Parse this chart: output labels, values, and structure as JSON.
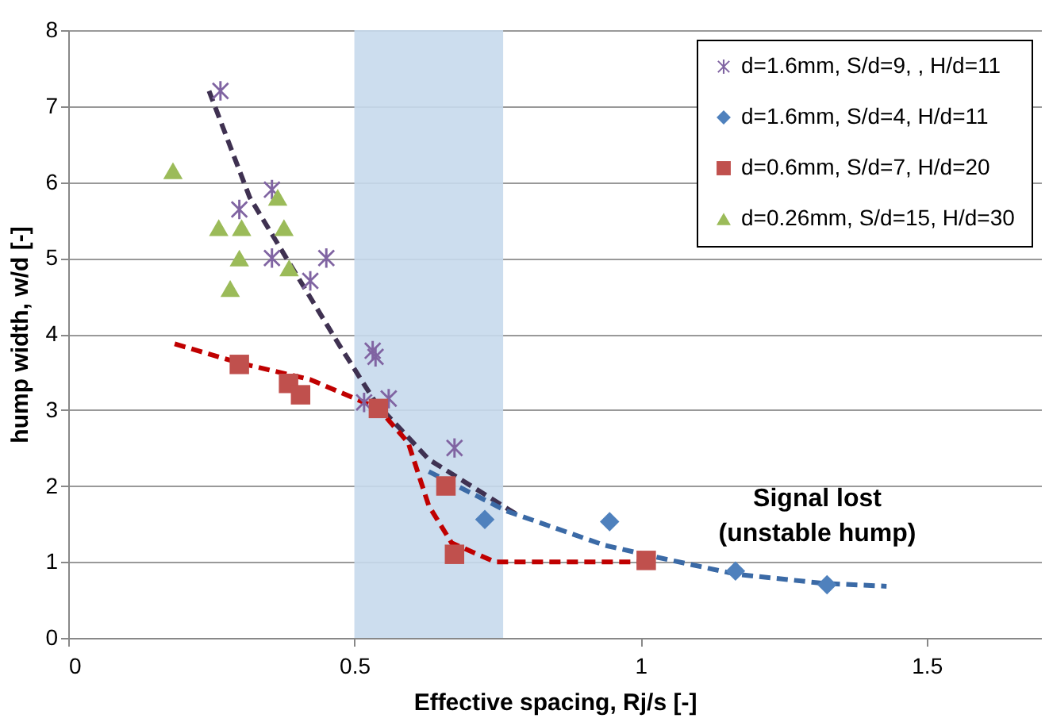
{
  "chart_data": {
    "type": "scatter",
    "xlabel": "Effective spacing, Rj/s [-]",
    "ylabel": "hump width, w/d [-]",
    "xlim": [
      0,
      1.7
    ],
    "xticks": [
      {
        "value": 0,
        "label": "0"
      },
      0.5,
      {
        "value": 1,
        "label": "1"
      },
      1.5
    ],
    "ylim": [
      0,
      8
    ],
    "yticks": [
      0,
      1,
      2,
      3,
      4,
      5,
      6,
      7,
      8
    ],
    "grid": "y",
    "legend": "top right",
    "bands": [
      {
        "axis": "x",
        "from": 0.5,
        "to": 0.76,
        "color": "#c6d9ec"
      }
    ],
    "annotations": [
      "Signal lost\n(unstable hump)"
    ],
    "series": [
      {
        "type": "line",
        "color": "#3f3151",
        "line_style": "dashed",
        "x": [
          0.246,
          0.317,
          0.394,
          0.474,
          0.537,
          0.63,
          0.789
        ],
        "values": [
          7.2,
          5.8,
          4.84,
          3.85,
          3.1,
          2.35,
          1.6
        ]
      },
      {
        "type": "line",
        "color": "#3b6aa6",
        "line_style": "dashed",
        "x": [
          0.63,
          0.766,
          0.937,
          1.03,
          1.166,
          1.317,
          1.43
        ],
        "values": [
          2.19,
          1.67,
          1.22,
          1.06,
          0.84,
          0.72,
          0.68
        ]
      },
      {
        "type": "line",
        "color": "#c00000",
        "line_style": "dashed",
        "x": [
          0.186,
          0.299,
          0.423,
          0.542,
          0.594,
          0.63,
          0.67,
          0.746,
          0.766,
          1.01
        ],
        "values": [
          3.87,
          3.62,
          3.4,
          3.02,
          2.57,
          1.74,
          1.25,
          1.0,
          1.0,
          1.0
        ]
      },
      {
        "name": "d=1.6mm, S/d=9, , H/d=11",
        "color": "#8064a2",
        "marker": "cross",
        "x": [
          0.266,
          0.299,
          0.356,
          0.356,
          0.423,
          0.451,
          0.532,
          0.537,
          0.517,
          0.56,
          0.675
        ],
        "values": [
          7.2,
          5.64,
          5.9,
          5.0,
          4.7,
          5.0,
          3.78,
          3.7,
          3.1,
          3.15,
          2.5
        ]
      },
      {
        "name": "d=1.6mm, S/d=4, H/d=11",
        "color": "#4f81bd",
        "marker": "diamond",
        "x": [
          0.728,
          0.946,
          1.166,
          1.326
        ],
        "values": [
          1.56,
          1.53,
          0.88,
          0.7
        ]
      },
      {
        "name": "d=0.6mm, S/d=7, H/d=20",
        "color": "#c0504d",
        "marker": "square",
        "x": [
          0.299,
          0.385,
          0.406,
          0.542,
          0.66,
          0.675,
          1.01
        ],
        "values": [
          3.6,
          3.35,
          3.2,
          3.02,
          2.0,
          1.1,
          1.02
        ]
      },
      {
        "name": "d=0.26mm, S/d=15, H/d=30",
        "color": "#9bbb59",
        "marker": "triangle",
        "x": [
          0.183,
          0.263,
          0.303,
          0.299,
          0.283,
          0.366,
          0.377,
          0.386
        ],
        "values": [
          6.15,
          5.4,
          5.4,
          5.0,
          4.6,
          5.8,
          5.4,
          4.87
        ]
      }
    ]
  }
}
